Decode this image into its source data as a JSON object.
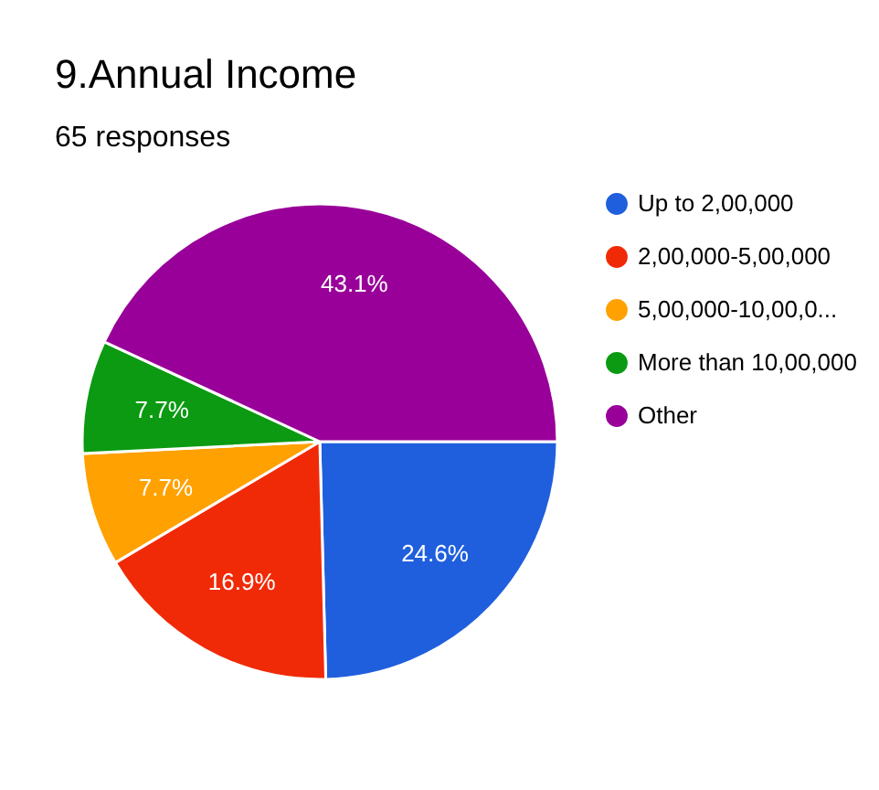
{
  "chart_data": {
    "type": "pie",
    "title": "9.Annual Income",
    "subtitle": "65 responses",
    "categories": [
      "Up to 2,00,000",
      "2,00,000-5,00,000",
      "5,00,000-10,00,0...",
      "More than 10,00,000",
      "Other"
    ],
    "values": [
      24.6,
      16.9,
      7.7,
      7.7,
      43.1
    ],
    "value_labels": [
      "24.6%",
      "16.9%",
      "7.7%",
      "7.7%",
      "43.1%"
    ],
    "colors": [
      "#1f5fdd",
      "#f02a07",
      "#ffa100",
      "#0b9a12",
      "#990099"
    ],
    "legend": "right"
  }
}
